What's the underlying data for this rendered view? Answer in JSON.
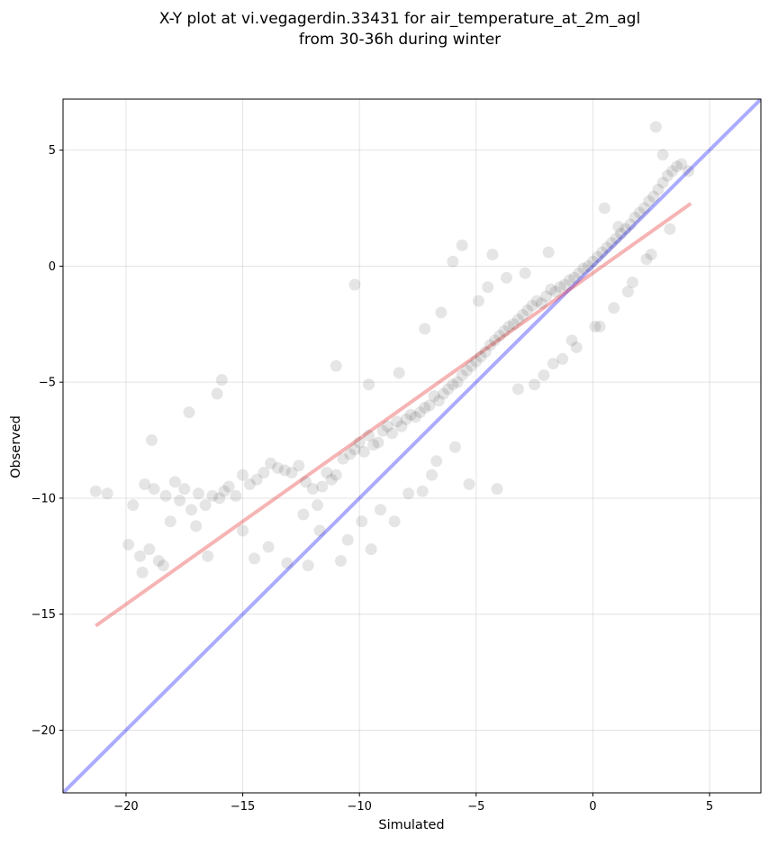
{
  "chart_data": {
    "type": "scatter",
    "title": "X-Y plot at vi.vegagerdin.33431 for air_temperature_at_2m_agl",
    "subtitle": "from 30-36h during winter",
    "xlabel": "Simulated",
    "ylabel": "Observed",
    "xlim": [
      -22.7,
      7.2
    ],
    "ylim": [
      -22.7,
      7.2
    ],
    "x_ticks": [
      -20,
      -15,
      -10,
      -5,
      0,
      5
    ],
    "y_ticks": [
      -20,
      -15,
      -10,
      -5,
      0,
      5
    ],
    "x_tick_labels": [
      "−20",
      "−15",
      "−10",
      "−5",
      "0",
      "5"
    ],
    "y_tick_labels": [
      "−20",
      "−15",
      "−10",
      "−5",
      "0",
      "5"
    ],
    "grid": true,
    "colors": {
      "points": "#000000",
      "identity_line": "#0000ff",
      "fit_line": "#e31a1c"
    },
    "lines": [
      {
        "kind": "identity",
        "x": [
          -22.7,
          7.2
        ],
        "y": [
          -22.7,
          7.2
        ],
        "color": "#0000ff"
      },
      {
        "kind": "fit",
        "x": [
          -21.3,
          4.2
        ],
        "y": [
          -15.5,
          2.7
        ],
        "color": "#e31a1c"
      }
    ],
    "points": {
      "x": [
        -21.3,
        -20.8,
        -19.9,
        -19.7,
        -19.4,
        -19.2,
        -19.0,
        -18.8,
        -18.6,
        -18.3,
        -18.1,
        -17.9,
        -17.7,
        -17.5,
        -17.2,
        -16.9,
        -16.6,
        -16.3,
        -16.0,
        -15.8,
        -15.6,
        -15.3,
        -15.0,
        -14.7,
        -14.4,
        -14.1,
        -13.8,
        -13.5,
        -13.2,
        -12.9,
        -12.6,
        -12.3,
        -12.0,
        -11.8,
        -11.6,
        -11.4,
        -11.2,
        -11.0,
        -10.7,
        -10.4,
        -10.2,
        -10.0,
        -9.8,
        -9.6,
        -9.4,
        -9.2,
        -9.0,
        -8.8,
        -8.6,
        -8.4,
        -8.2,
        -8.0,
        -7.8,
        -7.6,
        -7.4,
        -7.2,
        -7.0,
        -6.8,
        -6.6,
        -6.4,
        -6.2,
        -6.0,
        -5.8,
        -5.6,
        -5.4,
        -5.2,
        -5.0,
        -4.8,
        -4.6,
        -4.4,
        -4.2,
        -4.0,
        -3.8,
        -3.6,
        -3.4,
        -3.2,
        -3.0,
        -2.8,
        -2.6,
        -2.4,
        -2.2,
        -2.0,
        -1.8,
        -1.6,
        -1.4,
        -1.2,
        -1.0,
        -0.8,
        -0.6,
        -0.4,
        -0.2,
        0.0,
        0.2,
        0.4,
        0.6,
        0.8,
        1.0,
        1.2,
        1.4,
        1.6,
        1.8,
        2.0,
        2.2,
        2.4,
        2.6,
        2.8,
        3.0,
        3.2,
        3.4,
        3.6,
        3.8,
        4.1,
        2.7,
        3.0,
        -17.3,
        -18.9,
        -16.1,
        -15.9,
        -11.0,
        -10.2,
        -6.0,
        -5.6,
        -4.3,
        -3.7,
        -8.3,
        -9.6,
        -7.2,
        -6.5,
        -4.9,
        -4.5,
        -2.9,
        -1.9,
        0.5,
        1.1,
        -12.4,
        -13.1,
        -10.8,
        -9.5,
        -14.5,
        -13.9,
        -19.3,
        -18.4,
        -17.0,
        -16.5,
        -15.0,
        -7.9,
        -6.9,
        -3.2,
        -2.1,
        -1.3,
        -0.7,
        0.3,
        1.5,
        2.3,
        -9.1,
        -8.5,
        -5.3,
        -4.1,
        -11.7,
        -12.2,
        -10.5,
        -9.9,
        -7.3,
        -6.7,
        -5.9,
        -2.5,
        -1.7,
        -0.9,
        0.1,
        0.9,
        1.7,
        2.5,
        3.3
      ],
      "y": [
        -9.7,
        -9.8,
        -12.0,
        -10.3,
        -12.5,
        -9.4,
        -12.2,
        -9.6,
        -12.7,
        -9.9,
        -11.0,
        -9.3,
        -10.1,
        -9.6,
        -10.5,
        -9.8,
        -10.3,
        -9.9,
        -10.0,
        -9.7,
        -9.5,
        -9.9,
        -9.0,
        -9.4,
        -9.2,
        -8.9,
        -8.5,
        -8.7,
        -8.8,
        -8.9,
        -8.6,
        -9.3,
        -9.6,
        -10.3,
        -9.5,
        -8.9,
        -9.2,
        -9.0,
        -8.3,
        -8.1,
        -7.9,
        -7.6,
        -8.0,
        -7.3,
        -7.7,
        -7.6,
        -7.1,
        -6.9,
        -7.2,
        -6.7,
        -6.9,
        -6.6,
        -6.4,
        -6.5,
        -6.3,
        -6.1,
        -6.0,
        -5.6,
        -5.8,
        -5.5,
        -5.3,
        -5.1,
        -5.0,
        -4.7,
        -4.5,
        -4.3,
        -4.1,
        -3.9,
        -3.7,
        -3.4,
        -3.2,
        -3.0,
        -2.8,
        -2.6,
        -2.5,
        -2.3,
        -2.1,
        -1.9,
        -1.7,
        -1.5,
        -1.6,
        -1.3,
        -1.0,
        -1.1,
        -0.9,
        -0.8,
        -0.6,
        -0.5,
        -0.3,
        -0.1,
        0.0,
        0.2,
        0.4,
        0.6,
        0.8,
        1.0,
        1.2,
        1.4,
        1.6,
        1.8,
        2.1,
        2.3,
        2.5,
        2.8,
        3.0,
        3.3,
        3.6,
        3.9,
        4.1,
        4.3,
        4.4,
        4.1,
        6.0,
        4.8,
        -6.3,
        -7.5,
        -5.5,
        -4.9,
        -4.3,
        -0.8,
        0.2,
        0.9,
        0.5,
        -0.5,
        -4.6,
        -5.1,
        -2.7,
        -2.0,
        -1.5,
        -0.9,
        -0.3,
        0.6,
        2.5,
        1.7,
        -10.7,
        -12.8,
        -12.7,
        -12.2,
        -12.6,
        -12.1,
        -13.2,
        -12.9,
        -11.2,
        -12.5,
        -11.4,
        -9.8,
        -9.0,
        -5.3,
        -4.7,
        -4.0,
        -3.5,
        -2.6,
        -1.1,
        0.3,
        -10.5,
        -11.0,
        -9.4,
        -9.6,
        -11.4,
        -12.9,
        -11.8,
        -11.0,
        -9.7,
        -8.4,
        -7.8,
        -5.1,
        -4.2,
        -3.2,
        -2.6,
        -1.8,
        -0.7,
        0.5,
        1.6
      ]
    }
  }
}
